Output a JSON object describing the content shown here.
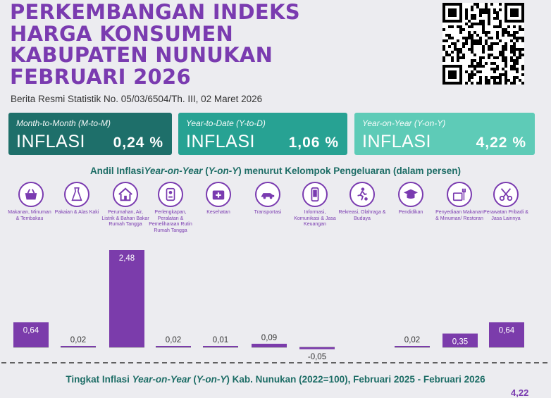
{
  "header": {
    "title_lines": [
      "PERKEMBANGAN INDEKS",
      "HARGA KONSUMEN",
      "KABUPATEN NUNUKAN",
      "FEBRUARI 2026"
    ],
    "subtitle": "Berita Resmi Statistik No. 05/03/6504/Th. III, 02 Maret 2026"
  },
  "cards": [
    {
      "label": "Month-to-Month (M-to-M)",
      "name": "INFLASI",
      "value": "0,24 %",
      "color": "#1e6f6a"
    },
    {
      "label": "Year-to-Date (Y-to-D)",
      "name": "INFLASI",
      "value": "1,06 %",
      "color": "#27a293"
    },
    {
      "label": "Year-on-Year (Y-on-Y)",
      "name": "INFLASI",
      "value": "4,22 %",
      "color": "#5ecbb7"
    }
  ],
  "section1": {
    "prefix": "Andil Inflasi",
    "italic": "Year-on-Year",
    "paren_open": " (",
    "italic2": "Y-on-Y",
    "suffix": ") menurut Kelompok Pengeluaran (dalam persen)"
  },
  "section2": {
    "prefix": "Tingkat Inflasi ",
    "italic": "Year-on-Year",
    "paren_open": " (",
    "italic2": "Y-on-Y",
    "suffix": ") Kab. Nunukan (2022=100), Februari 2025 - Februari 2026"
  },
  "corner_value": "4,22",
  "colors": {
    "accent": "#7a3bb0",
    "bar": "#7b3cab",
    "teal": "#1d6d66"
  },
  "chart_data": {
    "type": "bar",
    "title": "Andil Inflasi Year-on-Year (Y-on-Y) menurut Kelompok Pengeluaran (dalam persen)",
    "categories": [
      "Makanan, Minuman & Tembakau",
      "Pakaian & Alas Kaki",
      "Perumahan, Air, Listrik & Bahan Bakar Rumah Tangga",
      "Perlengkapan, Peralatan & Pemeliharaan Rutin Rumah Tangga",
      "Kesehatan",
      "Transportasi",
      "Informasi, Komunikasi & Jasa Keuangan",
      "Rekreasi, Olahraga & Budaya",
      "Pendidikan",
      "Penyediaan Makanan & Minuman/ Restoran",
      "Perawatan Pribadi & Jasa Lainnya"
    ],
    "icons": [
      "food-basket-icon",
      "dress-icon",
      "house-icon",
      "appliance-icon",
      "medical-kit-icon",
      "car-icon",
      "smartphone-icon",
      "sports-icon",
      "graduation-cap-icon",
      "restaurant-icon",
      "scissors-icon"
    ],
    "values": [
      0.64,
      0.02,
      2.48,
      0.02,
      0.01,
      0.09,
      -0.05,
      0.0,
      0.02,
      0.35,
      0.64
    ],
    "labels": [
      "0,64",
      "0,02",
      "2,48",
      "0,02",
      "0,01",
      "0,09",
      "-0,05",
      "",
      "0,02",
      "0,35",
      "0,64"
    ],
    "ylim": [
      -0.05,
      2.48
    ]
  }
}
